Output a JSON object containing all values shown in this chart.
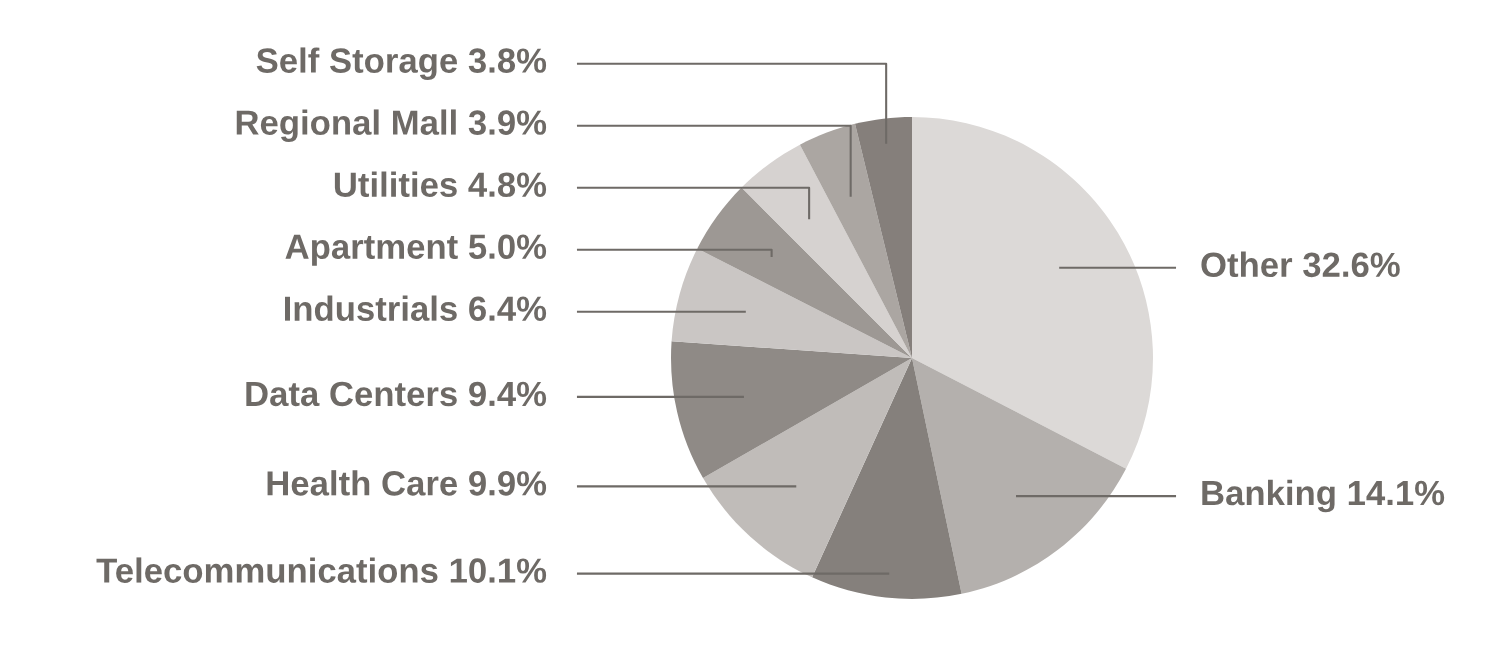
{
  "chart_data": {
    "type": "pie",
    "categories": [
      "Other",
      "Banking",
      "Telecommunications",
      "Health Care",
      "Data Centers",
      "Industrials",
      "Apartment",
      "Utilities",
      "Regional Mall",
      "Self Storage"
    ],
    "values": [
      32.6,
      14.1,
      10.1,
      9.9,
      9.4,
      6.4,
      5.0,
      4.8,
      3.9,
      3.8
    ],
    "value_labels": [
      "32.6%",
      "14.1%",
      "10.1%",
      "9.9%",
      "9.4%",
      "6.4%",
      "5.0%",
      "4.8%",
      "3.9%",
      "3.8%"
    ],
    "colors": [
      "#dcd9d7",
      "#b4b0ad",
      "#85807c",
      "#c0bcb9",
      "#8f8a86",
      "#cac6c4",
      "#9d9894",
      "#d6d2d0",
      "#aba6a2",
      "#857f7b"
    ],
    "legend": false
  }
}
